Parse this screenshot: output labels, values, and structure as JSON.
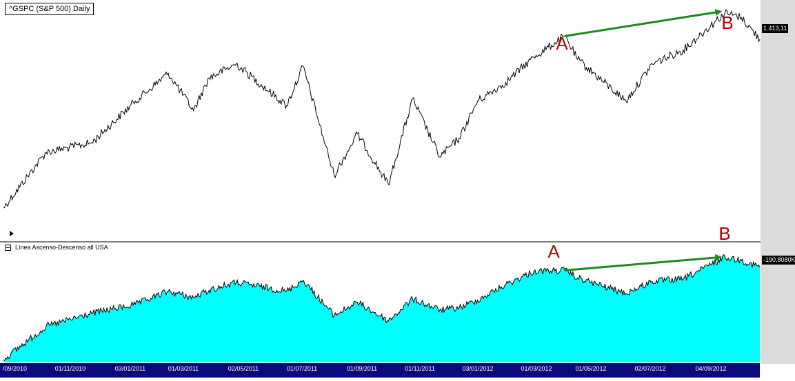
{
  "colors": {
    "price_line": "#000000",
    "breadth_fill": "#00ffff",
    "breadth_line": "#000000",
    "arrow": "#1a8a1a",
    "marker": "#b20000",
    "axis_bg": "#0a0a7e",
    "axis_text": "#ffffff",
    "strip": "#dcdcdc"
  },
  "panels": {
    "price": {
      "title": "^GSPC (S&P 500) Daily",
      "last_value": "1.413,11"
    },
    "breadth": {
      "title": "Línea Ascenso-Descenso all USA",
      "last_value": "-190,8080K"
    }
  },
  "markers": {
    "price_a": "A",
    "price_b": "B",
    "breadth_a": "A",
    "breadth_b": "B"
  },
  "controls": {
    "collapse_icon": "collapse-box-icon",
    "play_icon": "play-arrow-icon"
  },
  "chart_data": [
    {
      "type": "line",
      "title": "^GSPC (S&P 500) Daily",
      "last_value": 1413.11,
      "x": [
        "01/09/2010",
        "15/10/2010",
        "01/12/2010",
        "15/01/2011",
        "18/02/2011",
        "16/03/2011",
        "01/04/2011",
        "29/04/2011",
        "20/06/2011",
        "07/07/2011",
        "08/08/2011",
        "01/09/2011",
        "03/10/2011",
        "28/10/2011",
        "25/11/2011",
        "15/12/2011",
        "03/01/2012",
        "01/02/2012",
        "01/03/2012",
        "02/04/2012",
        "15/04/2012",
        "04/06/2012",
        "01/07/2012",
        "02/08/2012",
        "14/09/2012",
        "01/10/2012",
        "20/10/2012"
      ],
      "y": [
        1050,
        1170,
        1190,
        1280,
        1340,
        1260,
        1330,
        1360,
        1270,
        1355,
        1120,
        1210,
        1100,
        1285,
        1160,
        1200,
        1280,
        1320,
        1375,
        1420,
        1370,
        1280,
        1360,
        1390,
        1470,
        1460,
        1413
      ],
      "ylim": [
        1020,
        1480
      ],
      "annotations": [
        {
          "label": "A",
          "x": "02/04/2012",
          "y": 1420
        },
        {
          "label": "B",
          "x": "14/09/2012",
          "y": 1470
        }
      ]
    },
    {
      "type": "area",
      "title": "Línea Ascenso-Descenso all USA",
      "last_value": "-190,8080K",
      "x": [
        "01/09/2010",
        "15/10/2010",
        "01/12/2010",
        "15/01/2011",
        "18/02/2011",
        "16/03/2011",
        "01/04/2011",
        "29/04/2011",
        "20/06/2011",
        "07/07/2011",
        "08/08/2011",
        "01/09/2011",
        "03/10/2011",
        "28/10/2011",
        "25/11/2011",
        "15/12/2011",
        "03/01/2012",
        "01/02/2012",
        "01/03/2012",
        "02/04/2012",
        "15/04/2012",
        "04/06/2012",
        "01/07/2012",
        "02/08/2012",
        "14/09/2012",
        "01/10/2012",
        "20/10/2012"
      ],
      "y": [
        0.0,
        0.3,
        0.42,
        0.5,
        0.62,
        0.56,
        0.63,
        0.7,
        0.62,
        0.72,
        0.4,
        0.52,
        0.35,
        0.55,
        0.45,
        0.47,
        0.54,
        0.68,
        0.8,
        0.81,
        0.74,
        0.6,
        0.71,
        0.73,
        0.93,
        0.9,
        0.84
      ],
      "ylim": [
        0,
        1
      ],
      "annotations": [
        {
          "label": "A",
          "x": "02/04/2012",
          "y": 0.81
        },
        {
          "label": "B",
          "x": "14/09/2012",
          "y": 0.93
        }
      ]
    }
  ],
  "date_axis": [
    "/09/2010",
    "01/11/2010",
    "03/01/2011",
    "01/03/2011",
    "02/05/2011",
    "01/07/2011",
    "01/09/2011",
    "01/11/2011",
    "03/01/2012",
    "01/03/2012",
    "01/05/2012",
    "02/07/2012",
    "04/09/2012"
  ]
}
